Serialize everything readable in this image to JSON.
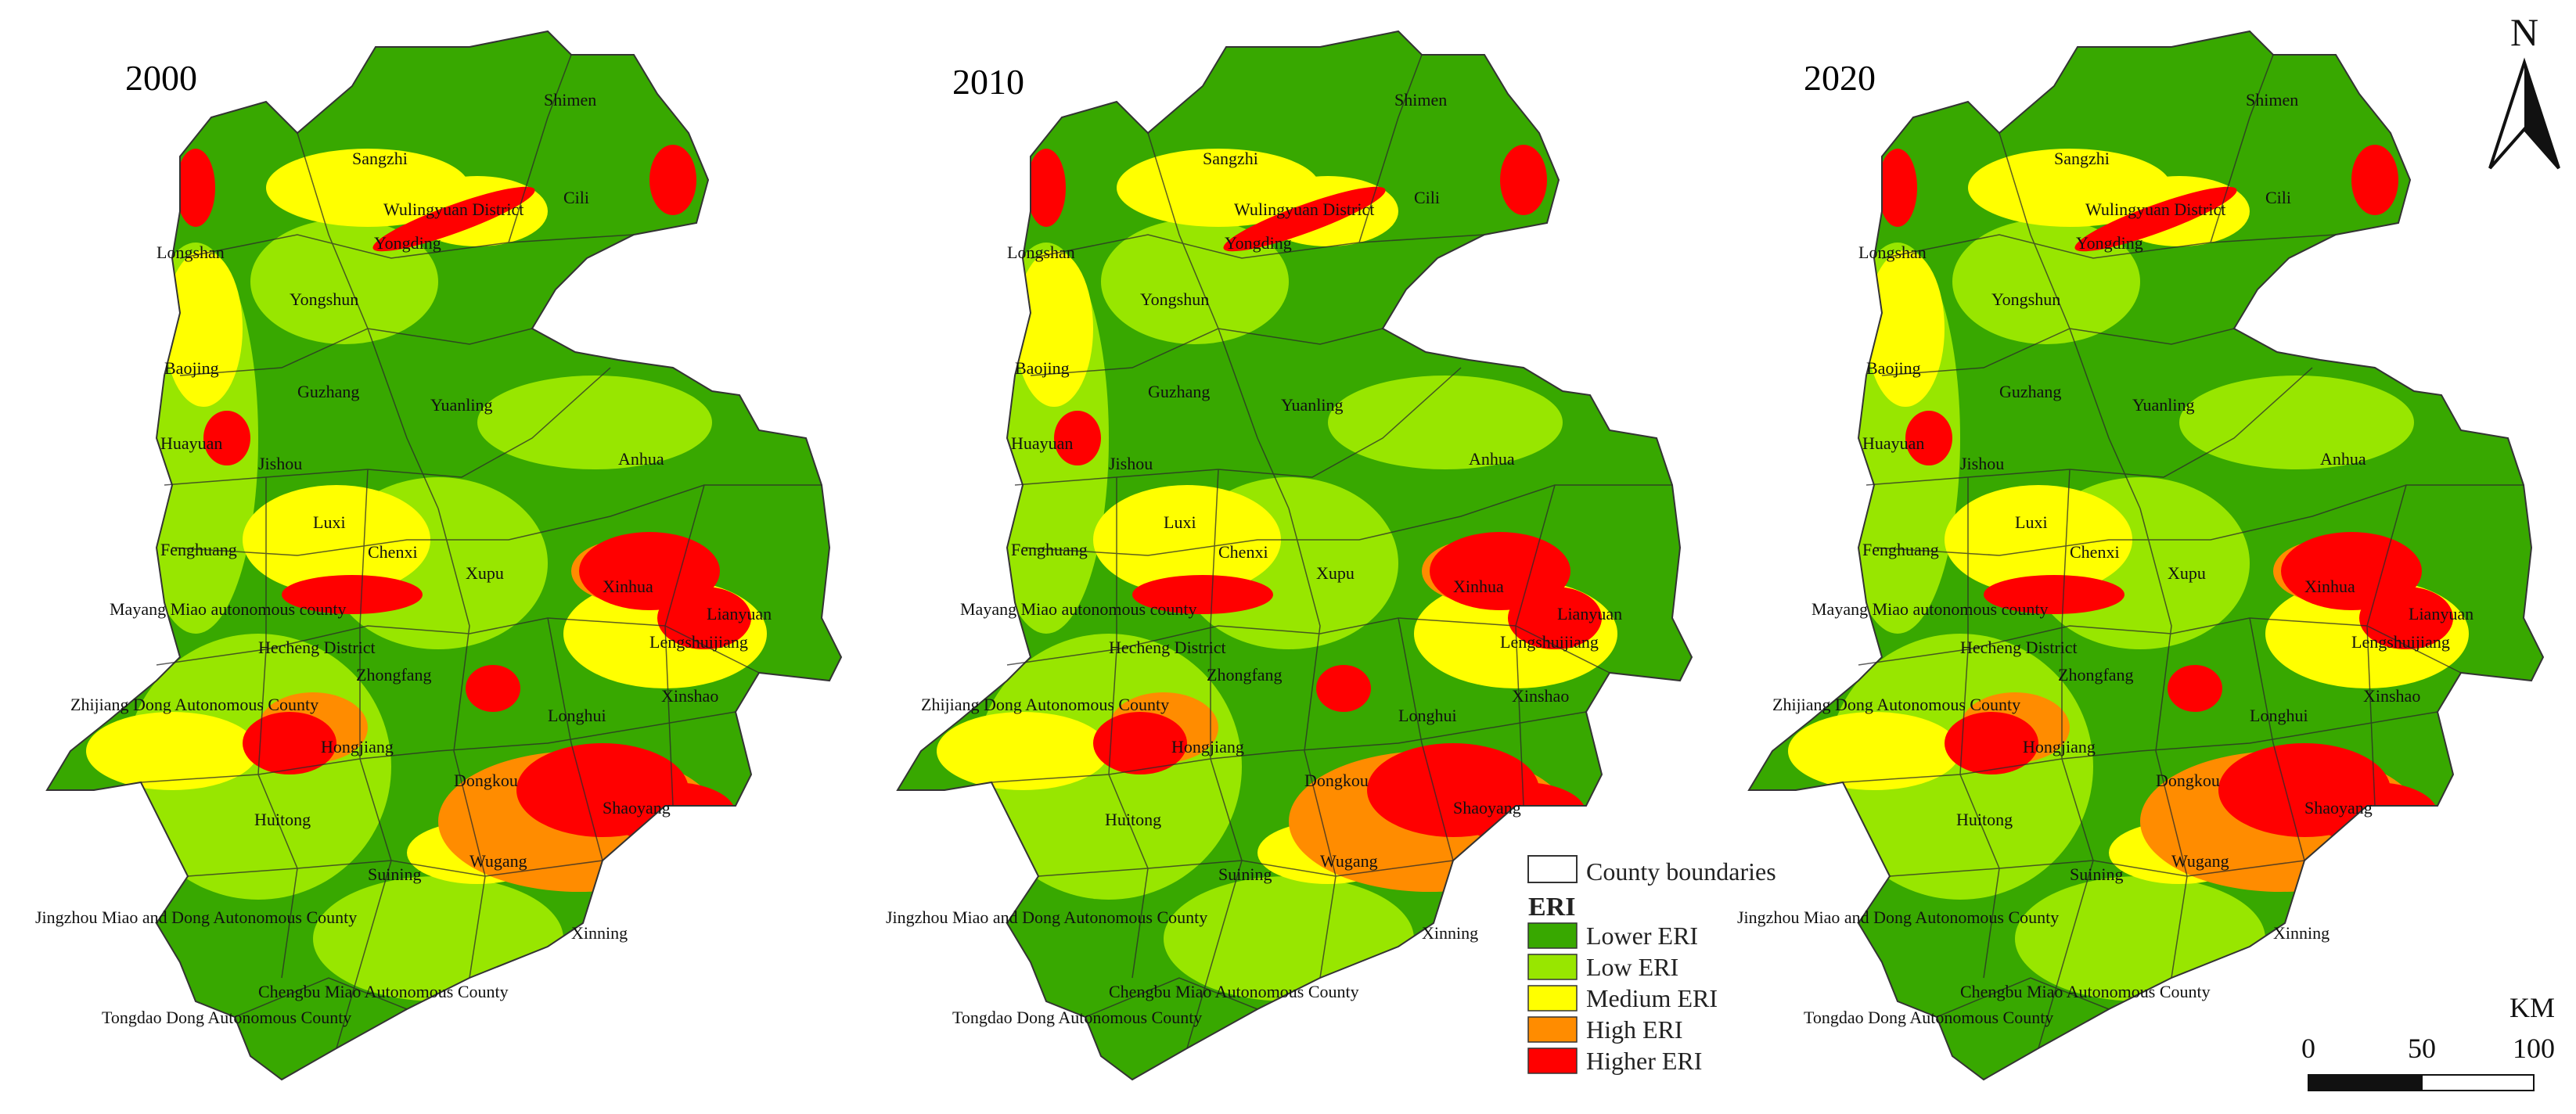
{
  "figure": {
    "panels": [
      {
        "id": "p2000",
        "year": "2000"
      },
      {
        "id": "p2010",
        "year": "2010"
      },
      {
        "id": "p2020",
        "year": "2020"
      }
    ],
    "county_labels": [
      "Shimen",
      "Sangzhi",
      "Cili",
      "Wulingyuan District",
      "Yongding",
      "Longshan",
      "Yongshun",
      "Baojing",
      "Guzhang",
      "Yuanling",
      "Huayuan",
      "Jishou",
      "Anhua",
      "Luxi",
      "Fenghuang",
      "Chenxi",
      "Xupu",
      "Xinhua",
      "Mayang Miao autonomous county",
      "Lianyuan",
      "Lengshuijiang",
      "Hecheng District",
      "Zhongfang",
      "Zhijiang Dong Autonomous County",
      "Longhui",
      "Xinshao",
      "Hongjiang",
      "Dongkou",
      "Shaoyang",
      "Huitong",
      "Wugang",
      "Suining",
      "Jingzhou Miao and Dong Autonomous County",
      "Xinning",
      "Chengbu Miao Autonomous County",
      "Tongdao Dong Autonomous County"
    ],
    "legend": {
      "boundary_label": "County boundaries",
      "title": "ERI",
      "classes": [
        {
          "label": "Lower ERI",
          "color": "#38a800"
        },
        {
          "label": "Low ERI",
          "color": "#98e600"
        },
        {
          "label": "Medium ERI",
          "color": "#ffff00"
        },
        {
          "label": "High ERI",
          "color": "#ff8c00"
        },
        {
          "label": "Higher ERI",
          "color": "#ff0000"
        }
      ]
    },
    "north_arrow": {
      "label": "N"
    },
    "scale_bar": {
      "unit": "KM",
      "ticks": [
        "0",
        "50",
        "100"
      ]
    }
  }
}
